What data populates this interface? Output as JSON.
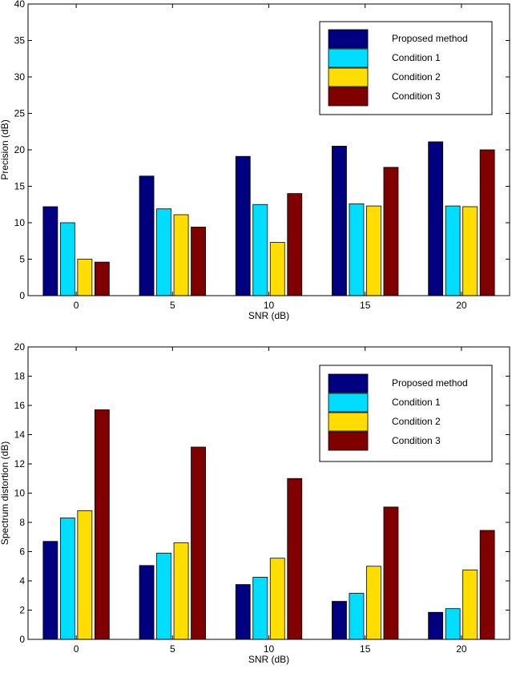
{
  "chart_data": [
    {
      "type": "bar",
      "categories": [
        "0",
        "5",
        "10",
        "15",
        "20"
      ],
      "xlabel": "SNR (dB)",
      "ylabel": "Precision (dB)",
      "ylim": [
        0,
        40
      ],
      "yticks": [
        "0",
        "5",
        "10",
        "15",
        "20",
        "25",
        "30",
        "35",
        "40"
      ],
      "legend_position": "top-right",
      "series": [
        {
          "name": "Proposed method",
          "color": "#000080",
          "values": [
            12.2,
            16.4,
            19.1,
            20.5,
            21.1
          ]
        },
        {
          "name": "Condition 1",
          "color": "#00DDFF",
          "values": [
            10.0,
            11.9,
            12.5,
            12.6,
            12.3
          ]
        },
        {
          "name": "Condition 2",
          "color": "#FFDD00",
          "values": [
            5.0,
            11.1,
            7.3,
            12.3,
            12.2
          ]
        },
        {
          "name": "Condition 3",
          "color": "#800000",
          "values": [
            4.6,
            9.4,
            14.0,
            17.6,
            20.0
          ]
        }
      ]
    },
    {
      "type": "bar",
      "categories": [
        "0",
        "5",
        "10",
        "15",
        "20"
      ],
      "xlabel": "SNR (dB)",
      "ylabel": "Spectrum distortion (dB)",
      "ylim": [
        0,
        20
      ],
      "yticks": [
        "0",
        "2",
        "4",
        "6",
        "8",
        "10",
        "12",
        "14",
        "16",
        "18",
        "20"
      ],
      "legend_position": "top-right",
      "series": [
        {
          "name": "Proposed method",
          "color": "#000080",
          "values": [
            6.7,
            5.05,
            3.75,
            2.6,
            1.85
          ]
        },
        {
          "name": "Condition 1",
          "color": "#00DDFF",
          "values": [
            8.3,
            5.9,
            4.25,
            3.15,
            2.1
          ]
        },
        {
          "name": "Condition 2",
          "color": "#FFDD00",
          "values": [
            8.8,
            6.6,
            5.55,
            5.0,
            4.75
          ]
        },
        {
          "name": "Condition 3",
          "color": "#800000",
          "values": [
            15.7,
            13.15,
            11.0,
            9.05,
            7.45
          ]
        }
      ]
    }
  ]
}
